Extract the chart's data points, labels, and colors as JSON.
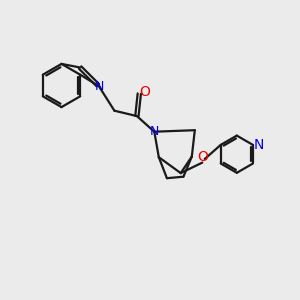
{
  "bg_color": "#ebebeb",
  "bond_color": "#1a1a1a",
  "N_color": "#0000ee",
  "O_color": "#ee0000",
  "line_width": 1.6,
  "figsize": [
    3.0,
    3.0
  ],
  "dpi": 100,
  "xlim": [
    0,
    10
  ],
  "ylim": [
    0,
    10
  ]
}
